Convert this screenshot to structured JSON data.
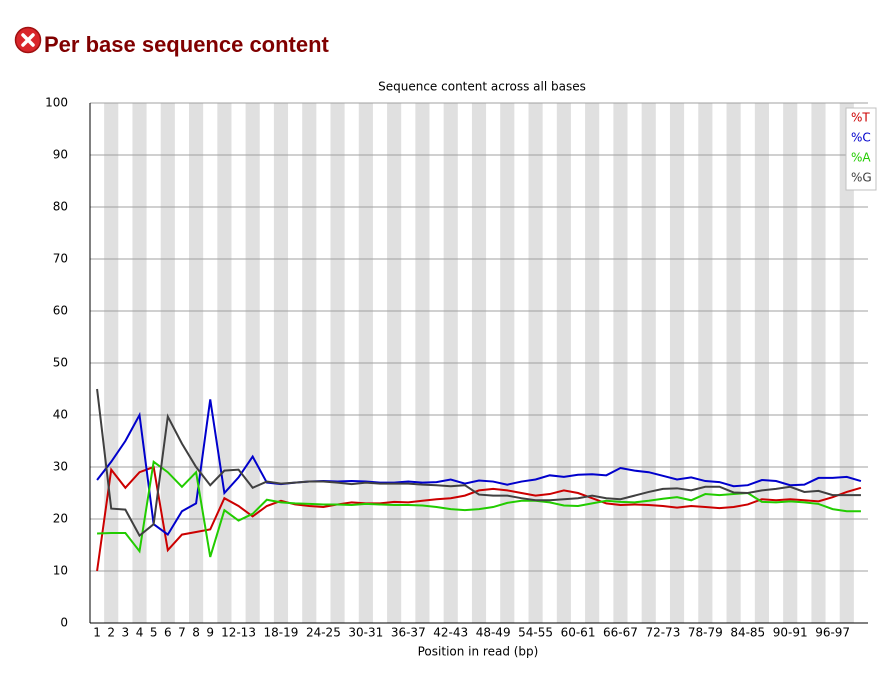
{
  "header": {
    "title": "Per base sequence content"
  },
  "chart_data": {
    "type": "line",
    "title": "Sequence content across all bases",
    "x_label": "Position in read (bp)",
    "categories": [
      "1",
      "2",
      "3",
      "4",
      "5",
      "6",
      "7",
      "8",
      "9",
      null,
      "12-13",
      null,
      null,
      "18-19",
      null,
      null,
      "24-25",
      null,
      null,
      "30-31",
      null,
      null,
      "36-37",
      null,
      null,
      "42-43",
      null,
      null,
      "48-49",
      null,
      null,
      "54-55",
      null,
      null,
      "60-61",
      null,
      null,
      "66-67",
      null,
      null,
      "72-73",
      null,
      null,
      "78-79",
      null,
      null,
      "84-85",
      null,
      null,
      "90-91",
      null,
      null,
      "96-97",
      null,
      null
    ],
    "series": [
      {
        "name": "%T",
        "color": "#cc0000",
        "values": [
          10,
          29.5,
          26,
          29,
          30,
          14,
          17,
          17.5,
          18,
          24,
          22.5,
          20.5,
          22.5,
          23.5,
          22.8,
          22.5,
          22.3,
          22.8,
          23.2,
          23,
          23,
          23.3,
          23.2,
          23.5,
          23.8,
          24,
          24.5,
          25.5,
          25.8,
          25.5,
          25,
          24.5,
          24.8,
          25.5,
          25,
          24,
          23,
          22.7,
          22.8,
          22.7,
          22.5,
          22.2,
          22.5,
          22.3,
          22.1,
          22.3,
          22.8,
          23.8,
          23.6,
          23.8,
          23.6,
          23.4,
          24.2,
          25.2,
          26
        ]
      },
      {
        "name": "%C",
        "color": "#0000cc",
        "values": [
          27.5,
          31,
          35,
          40,
          19,
          17,
          21.5,
          23,
          43,
          25,
          28,
          32,
          27,
          26.7,
          27,
          27.2,
          27.3,
          27.2,
          27.3,
          27.2,
          27,
          27,
          27.2,
          27,
          27.1,
          27.6,
          26.8,
          27.4,
          27.2,
          26.6,
          27.2,
          27.6,
          28.4,
          28.1,
          28.5,
          28.6,
          28.4,
          29.8,
          29.3,
          29,
          28.3,
          27.6,
          28,
          27.3,
          27.1,
          26.3,
          26.5,
          27.5,
          27.3,
          26.5,
          26.6,
          27.9,
          27.9,
          28.1,
          27.3
        ]
      },
      {
        "name": "%A",
        "color": "#22cc00",
        "values": [
          17.2,
          17.3,
          17.3,
          13.8,
          31,
          29,
          26.2,
          29,
          12.7,
          21.7,
          19.7,
          21,
          23.7,
          23.2,
          23,
          22.9,
          22.8,
          22.8,
          22.7,
          22.9,
          22.8,
          22.7,
          22.7,
          22.6,
          22.3,
          21.9,
          21.7,
          21.9,
          22.3,
          23.1,
          23.5,
          23.5,
          23.2,
          22.6,
          22.5,
          23,
          23.5,
          23.3,
          23.2,
          23.5,
          23.9,
          24.2,
          23.6,
          24.8,
          24.6,
          24.8,
          25,
          23.3,
          23.2,
          23.4,
          23.2,
          22.9,
          21.9,
          21.5,
          21.5
        ]
      },
      {
        "name": "%G",
        "color": "#404040",
        "values": [
          45,
          22,
          21.8,
          16.8,
          19,
          39.7,
          34.5,
          30,
          26.5,
          29.3,
          29.5,
          26,
          27.2,
          26.8,
          27,
          27.2,
          27.2,
          27,
          26.7,
          27,
          26.8,
          26.8,
          26.8,
          26.6,
          26.5,
          26.3,
          26.5,
          24.7,
          24.5,
          24.5,
          24,
          23.6,
          23.6,
          23.8,
          24,
          24.5,
          24,
          23.8,
          24.5,
          25.2,
          25.8,
          25.9,
          25.5,
          26.2,
          26.2,
          25.1,
          25,
          25.5,
          25.8,
          26.2,
          25.2,
          25.4,
          24.6,
          24.6,
          24.6
        ]
      }
    ],
    "ylim": [
      0,
      100
    ],
    "yticks": [
      0,
      10,
      20,
      30,
      40,
      50,
      60,
      70,
      80,
      90,
      100
    ],
    "grid": true,
    "legend": "top-right"
  }
}
